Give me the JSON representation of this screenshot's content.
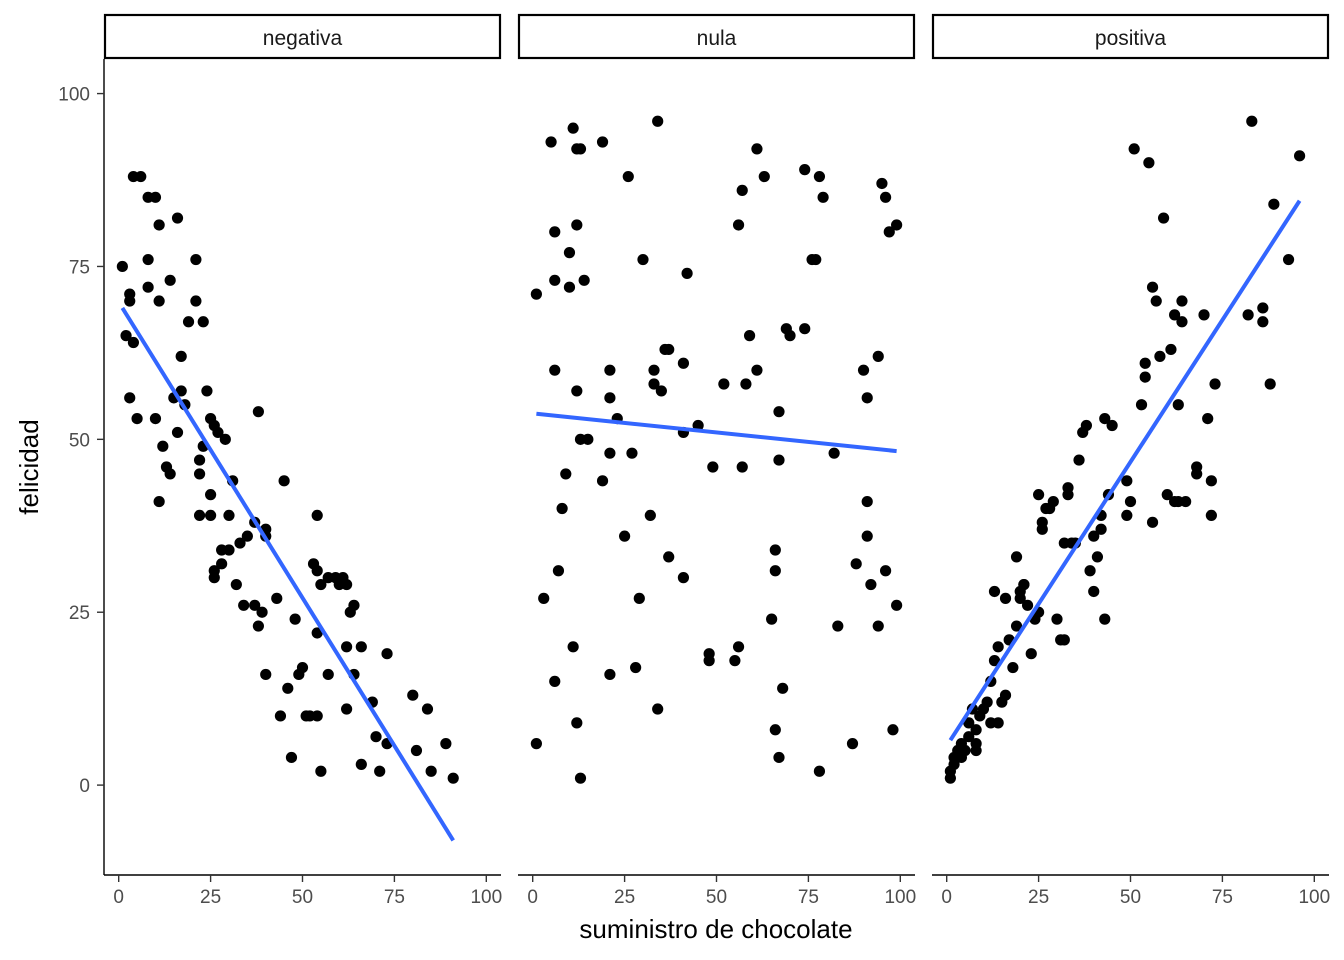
{
  "chart_data": {
    "type": "scatter",
    "xlabel": "suministro de chocolate",
    "ylabel": "felicidad",
    "xlim": [
      -4,
      104
    ],
    "ylim": [
      -13,
      105
    ],
    "x_ticks": [
      0,
      25,
      50,
      75,
      100
    ],
    "y_ticks": [
      0,
      25,
      50,
      75,
      100
    ],
    "x_tick_labels": [
      "0",
      "25",
      "50",
      "75",
      "100"
    ],
    "y_tick_labels": [
      "0",
      "25",
      "50",
      "75",
      "100"
    ],
    "grid": false,
    "point_color": "#000000",
    "line_color": "#3366FF",
    "panels": [
      {
        "label": "negativa",
        "trend": {
          "x": [
            1,
            91
          ],
          "y": [
            69,
            -8
          ]
        },
        "points": [
          [
            1,
            75
          ],
          [
            2,
            65
          ],
          [
            3,
            70
          ],
          [
            3,
            71
          ],
          [
            3,
            56
          ],
          [
            4,
            88
          ],
          [
            4,
            64
          ],
          [
            5,
            53
          ],
          [
            6,
            88
          ],
          [
            8,
            85
          ],
          [
            8,
            72
          ],
          [
            8,
            76
          ],
          [
            10,
            85
          ],
          [
            10,
            53
          ],
          [
            11,
            81
          ],
          [
            11,
            70
          ],
          [
            11,
            41
          ],
          [
            12,
            49
          ],
          [
            13,
            46
          ],
          [
            14,
            45
          ],
          [
            14,
            73
          ],
          [
            15,
            56
          ],
          [
            16,
            82
          ],
          [
            16,
            51
          ],
          [
            17,
            62
          ],
          [
            17,
            57
          ],
          [
            18,
            55
          ],
          [
            19,
            67
          ],
          [
            21,
            76
          ],
          [
            21,
            70
          ],
          [
            22,
            47
          ],
          [
            22,
            45
          ],
          [
            22,
            39
          ],
          [
            23,
            49
          ],
          [
            23,
            67
          ],
          [
            24,
            57
          ],
          [
            25,
            53
          ],
          [
            25,
            42
          ],
          [
            25,
            39
          ],
          [
            26,
            52
          ],
          [
            26,
            30
          ],
          [
            26,
            31
          ],
          [
            27,
            51
          ],
          [
            28,
            34
          ],
          [
            28,
            32
          ],
          [
            29,
            50
          ],
          [
            30,
            34
          ],
          [
            30,
            39
          ],
          [
            31,
            44
          ],
          [
            32,
            29
          ],
          [
            33,
            35
          ],
          [
            34,
            26
          ],
          [
            35,
            36
          ],
          [
            37,
            26
          ],
          [
            37,
            38
          ],
          [
            38,
            54
          ],
          [
            38,
            23
          ],
          [
            39,
            25
          ],
          [
            40,
            37
          ],
          [
            40,
            36
          ],
          [
            40,
            16
          ],
          [
            43,
            27
          ],
          [
            44,
            10
          ],
          [
            45,
            44
          ],
          [
            46,
            14
          ],
          [
            47,
            4
          ],
          [
            48,
            24
          ],
          [
            49,
            16
          ],
          [
            50,
            17
          ],
          [
            51,
            10
          ],
          [
            52,
            10
          ],
          [
            53,
            32
          ],
          [
            54,
            10
          ],
          [
            54,
            31
          ],
          [
            54,
            39
          ],
          [
            54,
            22
          ],
          [
            55,
            2
          ],
          [
            55,
            29
          ],
          [
            57,
            30
          ],
          [
            57,
            16
          ],
          [
            59,
            30
          ],
          [
            60,
            29
          ],
          [
            61,
            30
          ],
          [
            62,
            29
          ],
          [
            62,
            11
          ],
          [
            62,
            20
          ],
          [
            63,
            25
          ],
          [
            64,
            26
          ],
          [
            64,
            16
          ],
          [
            66,
            3
          ],
          [
            66,
            20
          ],
          [
            69,
            12
          ],
          [
            70,
            7
          ],
          [
            71,
            2
          ],
          [
            73,
            19
          ],
          [
            73,
            6
          ],
          [
            80,
            13
          ],
          [
            81,
            5
          ],
          [
            84,
            11
          ],
          [
            85,
            2
          ],
          [
            89,
            6
          ],
          [
            91,
            1
          ]
        ]
      },
      {
        "label": "nula",
        "trend": {
          "x": [
            1,
            99
          ],
          "y": [
            53.7,
            48.3
          ]
        },
        "points": [
          [
            1,
            71
          ],
          [
            1,
            6
          ],
          [
            3,
            27
          ],
          [
            5,
            93
          ],
          [
            6,
            60
          ],
          [
            6,
            80
          ],
          [
            6,
            73
          ],
          [
            6,
            15
          ],
          [
            7,
            31
          ],
          [
            8,
            40
          ],
          [
            9,
            45
          ],
          [
            10,
            72
          ],
          [
            10,
            77
          ],
          [
            11,
            20
          ],
          [
            11,
            95
          ],
          [
            12,
            92
          ],
          [
            12,
            81
          ],
          [
            12,
            57
          ],
          [
            12,
            9
          ],
          [
            13,
            92
          ],
          [
            13,
            50
          ],
          [
            13,
            1
          ],
          [
            14,
            73
          ],
          [
            15,
            50
          ],
          [
            19,
            93
          ],
          [
            19,
            44
          ],
          [
            21,
            60
          ],
          [
            21,
            56
          ],
          [
            21,
            48
          ],
          [
            21,
            16
          ],
          [
            23,
            53
          ],
          [
            25,
            36
          ],
          [
            26,
            88
          ],
          [
            27,
            48
          ],
          [
            28,
            17
          ],
          [
            29,
            27
          ],
          [
            30,
            76
          ],
          [
            32,
            39
          ],
          [
            33,
            60
          ],
          [
            33,
            58
          ],
          [
            34,
            96
          ],
          [
            34,
            11
          ],
          [
            35,
            57
          ],
          [
            36,
            63
          ],
          [
            37,
            63
          ],
          [
            37,
            33
          ],
          [
            41,
            61
          ],
          [
            41,
            51
          ],
          [
            41,
            30
          ],
          [
            42,
            74
          ],
          [
            45,
            52
          ],
          [
            48,
            19
          ],
          [
            48,
            18
          ],
          [
            49,
            46
          ],
          [
            52,
            58
          ],
          [
            55,
            18
          ],
          [
            56,
            20
          ],
          [
            56,
            81
          ],
          [
            57,
            86
          ],
          [
            57,
            46
          ],
          [
            58,
            58
          ],
          [
            59,
            65
          ],
          [
            61,
            60
          ],
          [
            61,
            92
          ],
          [
            63,
            88
          ],
          [
            65,
            24
          ],
          [
            66,
            34
          ],
          [
            66,
            31
          ],
          [
            66,
            8
          ],
          [
            67,
            54
          ],
          [
            67,
            47
          ],
          [
            67,
            4
          ],
          [
            68,
            14
          ],
          [
            69,
            66
          ],
          [
            70,
            65
          ],
          [
            74,
            89
          ],
          [
            74,
            66
          ],
          [
            76,
            76
          ],
          [
            77,
            76
          ],
          [
            78,
            88
          ],
          [
            78,
            2
          ],
          [
            79,
            85
          ],
          [
            82,
            48
          ],
          [
            83,
            23
          ],
          [
            87,
            6
          ],
          [
            88,
            32
          ],
          [
            90,
            60
          ],
          [
            91,
            56
          ],
          [
            91,
            41
          ],
          [
            91,
            36
          ],
          [
            92,
            29
          ],
          [
            94,
            62
          ],
          [
            94,
            23
          ],
          [
            95,
            87
          ],
          [
            96,
            85
          ],
          [
            96,
            31
          ],
          [
            97,
            80
          ],
          [
            98,
            8
          ],
          [
            99,
            81
          ],
          [
            99,
            26
          ]
        ]
      },
      {
        "label": "positiva",
        "trend": {
          "x": [
            1,
            96
          ],
          "y": [
            6.5,
            84.5
          ]
        },
        "points": [
          [
            1,
            1
          ],
          [
            1,
            2
          ],
          [
            2,
            3
          ],
          [
            2,
            4
          ],
          [
            3,
            5
          ],
          [
            4,
            6
          ],
          [
            4,
            4
          ],
          [
            5,
            5
          ],
          [
            6,
            7
          ],
          [
            6,
            9
          ],
          [
            7,
            11
          ],
          [
            8,
            8
          ],
          [
            8,
            5
          ],
          [
            8,
            6
          ],
          [
            9,
            10
          ],
          [
            10,
            11
          ],
          [
            11,
            12
          ],
          [
            12,
            9
          ],
          [
            12,
            15
          ],
          [
            13,
            28
          ],
          [
            13,
            18
          ],
          [
            14,
            20
          ],
          [
            14,
            9
          ],
          [
            15,
            12
          ],
          [
            16,
            13
          ],
          [
            16,
            27
          ],
          [
            17,
            21
          ],
          [
            18,
            17
          ],
          [
            19,
            23
          ],
          [
            19,
            33
          ],
          [
            20,
            27
          ],
          [
            20,
            28
          ],
          [
            21,
            29
          ],
          [
            21,
            29
          ],
          [
            22,
            26
          ],
          [
            23,
            19
          ],
          [
            24,
            24
          ],
          [
            25,
            25
          ],
          [
            25,
            42
          ],
          [
            26,
            38
          ],
          [
            26,
            37
          ],
          [
            27,
            40
          ],
          [
            28,
            40
          ],
          [
            29,
            41
          ],
          [
            30,
            24
          ],
          [
            31,
            21
          ],
          [
            32,
            21
          ],
          [
            32,
            35
          ],
          [
            33,
            43
          ],
          [
            33,
            42
          ],
          [
            34,
            35
          ],
          [
            35,
            35
          ],
          [
            36,
            47
          ],
          [
            37,
            51
          ],
          [
            38,
            52
          ],
          [
            39,
            31
          ],
          [
            40,
            36
          ],
          [
            40,
            28
          ],
          [
            41,
            33
          ],
          [
            42,
            39
          ],
          [
            42,
            37
          ],
          [
            43,
            53
          ],
          [
            43,
            24
          ],
          [
            44,
            42
          ],
          [
            45,
            52
          ],
          [
            49,
            44
          ],
          [
            49,
            39
          ],
          [
            50,
            41
          ],
          [
            51,
            92
          ],
          [
            53,
            55
          ],
          [
            54,
            61
          ],
          [
            54,
            59
          ],
          [
            55,
            90
          ],
          [
            56,
            72
          ],
          [
            56,
            38
          ],
          [
            57,
            70
          ],
          [
            58,
            62
          ],
          [
            59,
            82
          ],
          [
            60,
            42
          ],
          [
            61,
            63
          ],
          [
            62,
            68
          ],
          [
            62,
            41
          ],
          [
            63,
            41
          ],
          [
            63,
            55
          ],
          [
            64,
            67
          ],
          [
            64,
            70
          ],
          [
            65,
            41
          ],
          [
            68,
            46
          ],
          [
            68,
            45
          ],
          [
            70,
            68
          ],
          [
            71,
            53
          ],
          [
            72,
            39
          ],
          [
            72,
            44
          ],
          [
            73,
            58
          ],
          [
            82,
            68
          ],
          [
            83,
            96
          ],
          [
            86,
            69
          ],
          [
            86,
            67
          ],
          [
            88,
            58
          ],
          [
            89,
            84
          ],
          [
            93,
            76
          ],
          [
            96,
            91
          ]
        ]
      }
    ]
  }
}
